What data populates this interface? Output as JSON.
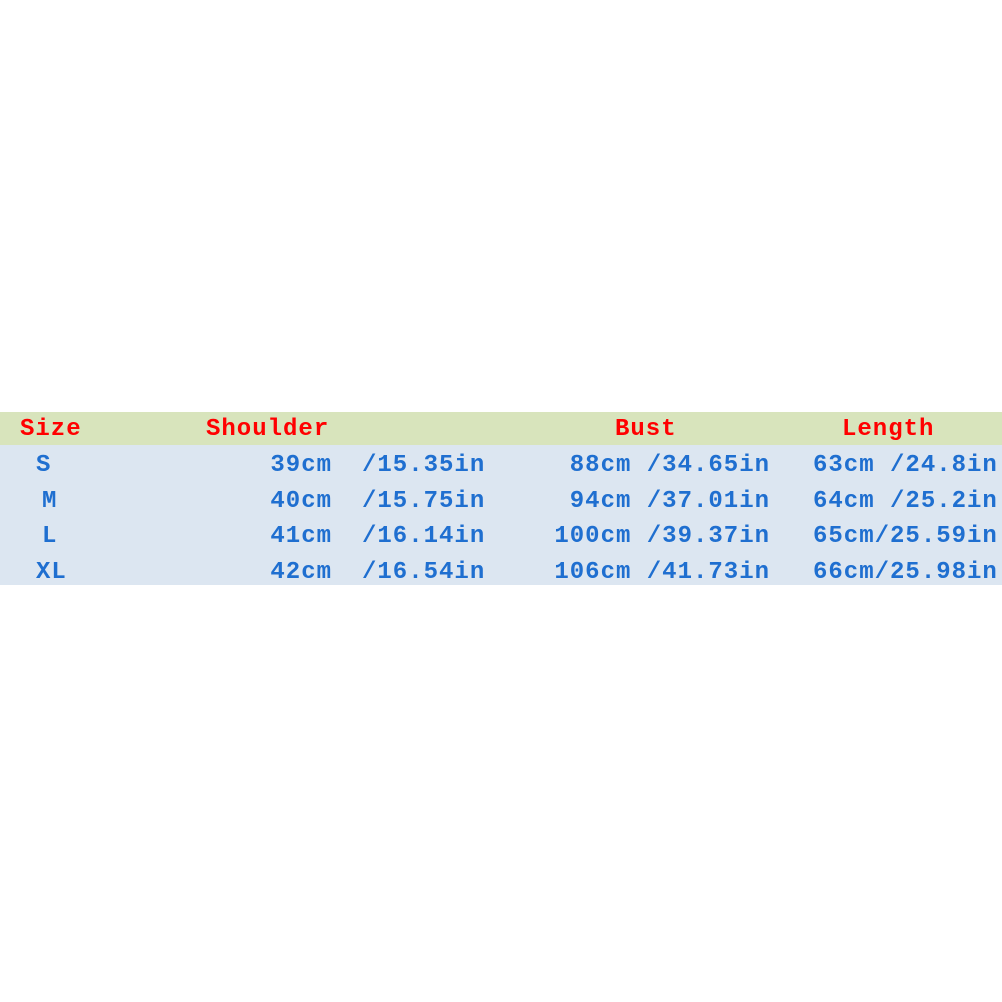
{
  "colors": {
    "header_bg": "#d8e4bc",
    "body_bg": "#dce6f1",
    "header_text": "#ff0000",
    "body_text": "#1f6fd0"
  },
  "headers": [
    "Size",
    "Shoulder",
    "Bust",
    "Length"
  ],
  "rows": [
    {
      "size": "S",
      "shoulder_cm": "39cm",
      "shoulder_in": "/15.35in",
      "bust": "88cm /34.65in",
      "length": "63cm /24.8in"
    },
    {
      "size": "M",
      "shoulder_cm": "40cm",
      "shoulder_in": "/15.75in",
      "bust": "94cm /37.01in",
      "length": "64cm /25.2in"
    },
    {
      "size": "L",
      "shoulder_cm": "41cm",
      "shoulder_in": "/16.14in",
      "bust": "100cm /39.37in",
      "length": "65cm/25.59in"
    },
    {
      "size": "XL",
      "shoulder_cm": "42cm",
      "shoulder_in": "/16.54in",
      "bust": "106cm /41.73in",
      "length": "66cm/25.98in"
    }
  ]
}
